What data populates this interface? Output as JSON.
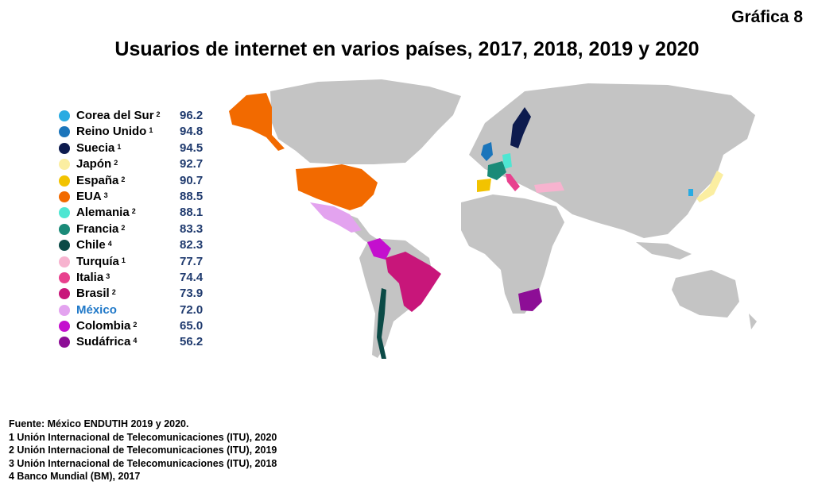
{
  "grafica": "Gráfica 8",
  "title": "Usuarios de internet en varios países, 2017, 2018, 2019 y 2020",
  "legend": [
    {
      "country": "Corea del Sur",
      "note": "2",
      "value": "96.2",
      "color": "#29abe2"
    },
    {
      "country": "Reino Unido",
      "note": "1",
      "value": "94.8",
      "color": "#1b75bb"
    },
    {
      "country": "Suecia",
      "note": "1",
      "value": "94.5",
      "color": "#0d1b4e"
    },
    {
      "country": "Japón",
      "note": "2",
      "value": "92.7",
      "color": "#fbeea1"
    },
    {
      "country": "España",
      "note": "2",
      "value": "90.7",
      "color": "#f2c300"
    },
    {
      "country": "EUA",
      "note": "3",
      "value": "88.5",
      "color": "#f26a00"
    },
    {
      "country": "Alemania",
      "note": "2",
      "value": "88.1",
      "color": "#4ee6d2"
    },
    {
      "country": "Francia",
      "note": "2",
      "value": "83.3",
      "color": "#1a8a78"
    },
    {
      "country": "Chile",
      "note": "4",
      "value": "82.3",
      "color": "#0b4a46"
    },
    {
      "country": "Turquía",
      "note": "1",
      "value": "77.7",
      "color": "#f7b3cf"
    },
    {
      "country": "Italia",
      "note": "3",
      "value": "74.4",
      "color": "#e8418e"
    },
    {
      "country": "Brasil",
      "note": "2",
      "value": "73.9",
      "color": "#c8167a"
    },
    {
      "country": "México",
      "note": "",
      "value": "72.0",
      "color": "#e3a3ef"
    },
    {
      "country": "Colombia",
      "note": "2",
      "value": "65.0",
      "color": "#c40fce"
    },
    {
      "country": "Sudáfrica",
      "note": "4",
      "value": "56.2",
      "color": "#8d0e96"
    }
  ],
  "map_colors": {
    "land": "#c4c4c4",
    "highlighted_country": "México"
  },
  "notes": [
    "Fuente: México ENDUTIH 2019 y 2020.",
    "1 Unión Internacional de Telecomunicaciones (ITU), 2020",
    "2 Unión Internacional de Telecomunicaciones (ITU), 2019",
    "3 Unión Internacional de Telecomunicaciones (ITU), 2018",
    "4 Banco Mundial (BM), 2017"
  ]
}
